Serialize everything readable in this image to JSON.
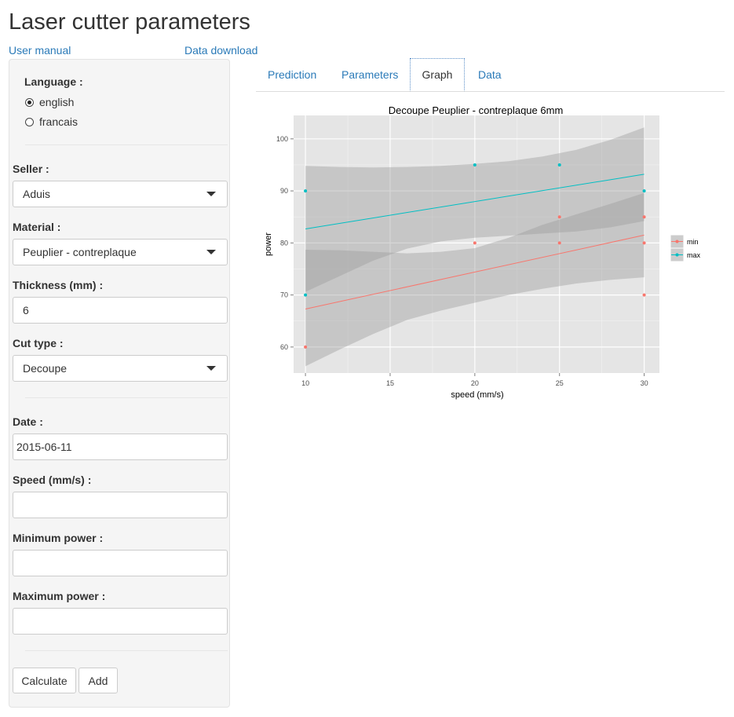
{
  "app": {
    "title": "Laser cutter parameters",
    "links": {
      "user_manual": "User manual",
      "data_download": "Data download"
    }
  },
  "sidebar": {
    "language": {
      "label": "Language :",
      "options": [
        {
          "label": "english",
          "selected": true
        },
        {
          "label": "francais",
          "selected": false
        }
      ]
    },
    "seller": {
      "label": "Seller :",
      "value": "Aduis"
    },
    "material": {
      "label": "Material :",
      "value": "Peuplier - contreplaque"
    },
    "thickness": {
      "label": "Thickness (mm) :",
      "value": "6"
    },
    "cut_type": {
      "label": "Cut type :",
      "value": "Decoupe"
    },
    "date": {
      "label": "Date :",
      "value": "2015-06-11"
    },
    "speed": {
      "label": "Speed (mm/s) :",
      "value": ""
    },
    "min_power": {
      "label": "Minimum power :",
      "value": ""
    },
    "max_power": {
      "label": "Maximum power :",
      "value": ""
    },
    "buttons": {
      "calculate": "Calculate",
      "add": "Add"
    }
  },
  "tabs": [
    {
      "label": "Prediction",
      "active": false
    },
    {
      "label": "Parameters",
      "active": false
    },
    {
      "label": "Graph",
      "active": true
    },
    {
      "label": "Data",
      "active": false
    }
  ],
  "chart_data": {
    "type": "scatter",
    "title": "Decoupe Peuplier - contreplaque 6mm",
    "xlabel": "speed (mm/s)",
    "ylabel": "power",
    "xlim": [
      9.3,
      30.9
    ],
    "ylim": [
      55,
      104.5
    ],
    "xticks": [
      10,
      15,
      20,
      25,
      30
    ],
    "yticks": [
      60,
      70,
      80,
      90,
      100
    ],
    "grid": true,
    "legend_position": "right",
    "series": [
      {
        "name": "min",
        "color": "#f8766d",
        "points": [
          [
            10,
            60
          ],
          [
            20,
            80
          ],
          [
            25,
            80
          ],
          [
            25,
            85
          ],
          [
            30,
            70
          ],
          [
            30,
            80
          ],
          [
            30,
            85
          ]
        ],
        "fit": {
          "x": [
            10,
            30
          ],
          "y": [
            67.3,
            81.5
          ]
        },
        "band": {
          "x": [
            10,
            12,
            14,
            16,
            18,
            20,
            22,
            24,
            26,
            28,
            30
          ],
          "lower": [
            56.3,
            59.5,
            62.5,
            65.2,
            67.0,
            68.5,
            70.0,
            71.2,
            72.2,
            72.9,
            73.4
          ],
          "upper": [
            78.7,
            78.6,
            78.3,
            78.0,
            78.3,
            79.0,
            81.0,
            83.5,
            85.5,
            87.5,
            89.6
          ]
        }
      },
      {
        "name": "max",
        "color": "#00bfc4",
        "points": [
          [
            10,
            70
          ],
          [
            10,
            90
          ],
          [
            20,
            95
          ],
          [
            25,
            95
          ],
          [
            30,
            90
          ]
        ],
        "fit": {
          "x": [
            10,
            30
          ],
          "y": [
            82.7,
            93.2
          ]
        },
        "band": {
          "x": [
            10,
            12,
            14,
            16,
            18,
            20,
            22,
            24,
            26,
            28,
            30
          ],
          "lower": [
            70.6,
            73.6,
            76.6,
            78.9,
            80.3,
            81.0,
            81.4,
            81.8,
            82.2,
            83.0,
            84.2
          ],
          "upper": [
            94.8,
            94.6,
            94.5,
            94.6,
            94.8,
            95.2,
            95.7,
            96.6,
            97.9,
            99.8,
            102.2
          ]
        }
      }
    ]
  }
}
